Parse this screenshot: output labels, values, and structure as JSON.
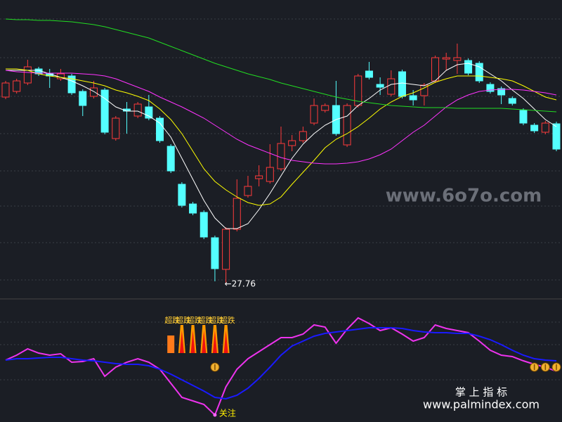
{
  "chart_data": [
    {
      "type": "candlestick",
      "ylim": [
        27.4,
        35.8
      ],
      "up_color": "#ff3b3b",
      "down_color": "#54ffff",
      "open": [
        33.04,
        33.2,
        33.44,
        33.84,
        33.7,
        33.56,
        33.64,
        33.2,
        33.06,
        33.24,
        31.86,
        32.7,
        32.5,
        32.76,
        32.44,
        31.64,
        30.56,
        30.0,
        29.76,
        29.04,
        28.14,
        29.28,
        30.24,
        30.72,
        30.64,
        31.0,
        31.66,
        31.8,
        32.3,
        32.66,
        32.8,
        31.68,
        32.8,
        33.78,
        33.4,
        33.12,
        33.76,
        33.08,
        33.08,
        33.5,
        34.12,
        34.08,
        34.08,
        34.0,
        33.4,
        33.28,
        33.0,
        32.66,
        32.24,
        32.04,
        32.28
      ],
      "high": [
        33.5,
        33.56,
        34.1,
        33.9,
        33.84,
        33.84,
        33.7,
        33.26,
        33.5,
        33.3,
        32.5,
        32.9,
        32.9,
        33.1,
        32.5,
        31.7,
        30.62,
        30.06,
        29.82,
        29.1,
        29.34,
        30.7,
        30.8,
        31.1,
        31.7,
        32.2,
        31.96,
        32.2,
        33.0,
        32.86,
        33.5,
        32.86,
        33.7,
        34.04,
        33.6,
        33.8,
        33.82,
        33.24,
        33.44,
        34.22,
        34.3,
        34.56,
        34.14,
        34.06,
        33.46,
        33.34,
        33.06,
        32.72,
        32.3,
        32.36,
        32.34
      ],
      "low": [
        32.98,
        33.14,
        33.38,
        33.64,
        33.3,
        33.5,
        33.1,
        32.5,
        33.0,
        31.98,
        31.8,
        32.0,
        32.44,
        32.38,
        31.74,
        30.88,
        29.9,
        29.68,
        29.0,
        27.8,
        27.76,
        29.22,
        30.18,
        30.5,
        30.58,
        30.94,
        31.5,
        31.74,
        32.24,
        32.6,
        31.94,
        31.62,
        32.74,
        33.54,
        33.1,
        33.06,
        33.0,
        32.8,
        32.8,
        33.44,
        33.8,
        33.7,
        33.66,
        33.44,
        33.14,
        32.84,
        32.8,
        32.24,
        32.02,
        31.98,
        31.5
      ],
      "close": [
        33.44,
        33.5,
        33.9,
        33.7,
        33.64,
        33.7,
        33.16,
        32.8,
        33.3,
        32.04,
        32.44,
        32.64,
        32.84,
        32.44,
        31.8,
        30.94,
        29.96,
        29.74,
        29.06,
        28.16,
        29.28,
        30.16,
        30.5,
        30.8,
        31.04,
        31.72,
        31.8,
        32.06,
        32.8,
        32.8,
        32.0,
        32.8,
        33.64,
        33.6,
        33.32,
        33.56,
        33.06,
        32.96,
        33.38,
        34.16,
        34.16,
        34.16,
        33.72,
        33.5,
        33.2,
        33.1,
        32.86,
        32.3,
        32.08,
        32.3,
        31.56
      ],
      "series": [
        {
          "color": "#ffffff",
          "values": [
            33.8,
            33.8,
            33.8,
            33.8,
            33.7,
            33.6,
            33.5,
            33.36,
            33.2,
            33.0,
            32.76,
            32.64,
            32.64,
            32.5,
            32.3,
            31.9,
            31.3,
            30.7,
            30.1,
            29.6,
            29.3,
            29.3,
            29.44,
            29.84,
            30.3,
            30.8,
            31.3,
            31.7,
            32.0,
            32.24,
            32.4,
            32.5,
            32.8,
            33.0,
            33.24,
            33.4,
            33.44,
            33.4,
            33.36,
            33.5,
            33.8,
            33.96,
            34.0,
            33.9,
            33.7,
            33.5,
            33.24,
            33.0,
            32.7,
            32.4,
            32.2
          ]
        },
        {
          "color": "#ffff00",
          "values": [
            33.84,
            33.84,
            33.8,
            33.7,
            33.64,
            33.6,
            33.56,
            33.5,
            33.44,
            33.36,
            33.24,
            33.16,
            33.06,
            32.94,
            32.7,
            32.4,
            32.0,
            31.5,
            31.0,
            30.64,
            30.4,
            30.2,
            30.04,
            29.96,
            30.0,
            30.2,
            30.56,
            30.9,
            31.24,
            31.6,
            31.84,
            32.0,
            32.2,
            32.44,
            32.7,
            32.9,
            33.06,
            33.16,
            33.3,
            33.46,
            33.56,
            33.64,
            33.64,
            33.64,
            33.6,
            33.56,
            33.5,
            33.36,
            33.2,
            33.04,
            32.96
          ]
        },
        {
          "color": "#ff33ff",
          "values": [
            33.8,
            33.76,
            33.74,
            33.72,
            33.72,
            33.72,
            33.72,
            33.7,
            33.68,
            33.64,
            33.56,
            33.44,
            33.32,
            33.2,
            33.04,
            32.9,
            32.76,
            32.6,
            32.44,
            32.24,
            32.04,
            31.84,
            31.68,
            31.56,
            31.44,
            31.32,
            31.24,
            31.2,
            31.16,
            31.14,
            31.14,
            31.16,
            31.2,
            31.28,
            31.4,
            31.56,
            31.8,
            32.04,
            32.24,
            32.5,
            32.76,
            32.96,
            33.1,
            33.2,
            33.24,
            33.26,
            33.26,
            33.24,
            33.2,
            33.16,
            33.1
          ]
        },
        {
          "color": "#22dd22",
          "values": [
            35.26,
            35.24,
            35.24,
            35.22,
            35.22,
            35.2,
            35.18,
            35.14,
            35.1,
            35.04,
            34.96,
            34.88,
            34.8,
            34.72,
            34.6,
            34.48,
            34.36,
            34.24,
            34.12,
            34.0,
            33.9,
            33.8,
            33.7,
            33.62,
            33.54,
            33.44,
            33.36,
            33.28,
            33.2,
            33.12,
            33.04,
            32.98,
            32.92,
            32.88,
            32.84,
            32.8,
            32.78,
            32.76,
            32.74,
            32.74,
            32.74,
            32.72,
            32.72,
            32.72,
            32.72,
            32.72,
            32.7,
            32.68,
            32.66,
            32.64,
            32.62
          ]
        }
      ],
      "low_label": {
        "index": 20,
        "text": "←27.76"
      },
      "watermark": "www.6o7o.com"
    },
    {
      "type": "line",
      "ylim": [
        0,
        170
      ],
      "series": [
        {
          "color": "#ee33ee",
          "values": [
            88,
            95,
            104,
            98,
            95,
            97,
            85,
            86,
            90,
            65,
            78,
            85,
            90,
            85,
            75,
            55,
            35,
            30,
            25,
            10,
            50,
            75,
            90,
            100,
            110,
            120,
            120,
            125,
            138,
            135,
            112,
            132,
            148,
            140,
            130,
            134,
            125,
            115,
            120,
            138,
            133,
            130,
            127,
            115,
            102,
            95,
            93,
            87,
            82,
            78,
            72
          ]
        },
        {
          "color": "#1a1aff",
          "values": [
            88,
            90,
            90,
            91,
            92,
            92,
            90,
            88,
            87,
            85,
            83,
            82,
            82,
            80,
            75,
            68,
            60,
            52,
            44,
            35,
            33,
            38,
            48,
            62,
            78,
            95,
            108,
            115,
            122,
            126,
            128,
            130,
            132,
            134,
            134,
            134,
            133,
            130,
            128,
            127,
            127,
            126,
            126,
            122,
            117,
            110,
            102,
            95,
            90,
            88,
            87
          ]
        }
      ],
      "oversold": {
        "label": "超跌",
        "indices": [
          15,
          16,
          17,
          18,
          19,
          20
        ]
      },
      "watch": {
        "label": "关注",
        "index": 19
      },
      "money_indices": [
        19,
        48,
        49,
        50
      ],
      "brand": "掌 上 指 标",
      "site": "www.palmindex.com"
    }
  ]
}
